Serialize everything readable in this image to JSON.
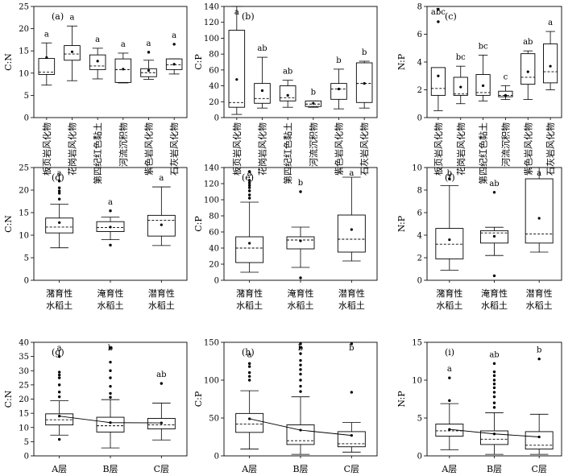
{
  "chart_data": [
    {
      "id": "a",
      "type": "box",
      "panel_label": "(a)",
      "ylabel": "C:N",
      "ylim": [
        0,
        25
      ],
      "yticks": [
        0,
        5,
        10,
        15,
        20,
        25
      ],
      "categories": [
        "板页岩风化物",
        "花岗岩风化物",
        "第四纪红色黏土",
        "河流沉积物",
        "紫色岩风化物",
        "石灰岩风化物"
      ],
      "boxes": [
        {
          "whislo": 7.3,
          "q1": 9.7,
          "med": 10.2,
          "q3": 13.3,
          "whishi": 16.8,
          "mean": 13.5,
          "sig": "a",
          "outliers": []
        },
        {
          "whislo": 8.3,
          "q1": 12.9,
          "med": 14.3,
          "q3": 16.2,
          "whishi": 20.6,
          "mean": 14.8,
          "sig": "a",
          "outliers": []
        },
        {
          "whislo": 8.7,
          "q1": 10.8,
          "med": 11.6,
          "q3": 14.1,
          "whishi": 15.6,
          "mean": 12.7,
          "sig": "a",
          "outliers": []
        },
        {
          "whislo": 7.8,
          "q1": 7.9,
          "med": 10.8,
          "q3": 13.2,
          "whishi": 14.5,
          "mean": 10.9,
          "sig": "a",
          "outliers": []
        },
        {
          "whislo": 8.6,
          "q1": 9.2,
          "med": 10.1,
          "q3": 11.0,
          "whishi": 12.9,
          "mean": 10.6,
          "sig": "a",
          "outliers": [
            14.7
          ]
        },
        {
          "whislo": 9.8,
          "q1": 10.8,
          "med": 11.9,
          "q3": 13.2,
          "whishi": 13.2,
          "mean": 12.0,
          "sig": "a",
          "outliers": [
            16.5
          ]
        }
      ]
    },
    {
      "id": "b",
      "type": "box",
      "panel_label": "(b)",
      "ylabel": "C:P",
      "ylim": [
        0,
        140
      ],
      "yticks": [
        0,
        20,
        40,
        60,
        80,
        100,
        120,
        140
      ],
      "categories": [
        "板页岩风化物",
        "花岗岩风化物",
        "第四纪红色黏土",
        "河流沉积物",
        "紫色岩风化物",
        "石灰岩风化物"
      ],
      "boxes": [
        {
          "whislo": 4,
          "q1": 13,
          "med": 19,
          "q3": 110,
          "whishi": 140,
          "mean": 48,
          "sig": "a",
          "outliers": []
        },
        {
          "whislo": 12,
          "q1": 18,
          "med": 24,
          "q3": 43,
          "whishi": 76,
          "mean": 34,
          "sig": "ab",
          "outliers": []
        },
        {
          "whislo": 13,
          "q1": 21,
          "med": 25,
          "q3": 40,
          "whishi": 47,
          "mean": 28,
          "sig": "ab",
          "outliers": []
        },
        {
          "whislo": 13,
          "q1": 14,
          "med": 17,
          "q3": 21,
          "whishi": 21,
          "mean": 18,
          "sig": "b",
          "outliers": []
        },
        {
          "whislo": 11,
          "q1": 23,
          "med": 36,
          "q3": 43,
          "whishi": 61,
          "mean": 36,
          "sig": "b",
          "outliers": []
        },
        {
          "whislo": 12,
          "q1": 19,
          "med": 43,
          "q3": 69,
          "whishi": 71,
          "mean": 43,
          "sig": "b",
          "outliers": []
        }
      ]
    },
    {
      "id": "c",
      "type": "box",
      "panel_label": "(c)",
      "ylabel": "N:P",
      "ylim": [
        0,
        8
      ],
      "yticks": [
        0,
        2,
        4,
        6,
        8
      ],
      "categories": [
        "板页岩风化物",
        "花岗岩风化物",
        "第四纪红色黏土",
        "河流沉积物",
        "紫色岩风化物",
        "石灰岩风化物"
      ],
      "boxes": [
        {
          "whislo": 0.5,
          "q1": 1.6,
          "med": 2.1,
          "q3": 3.6,
          "whishi": 3.6,
          "mean": 3.0,
          "sig": "abc",
          "outliers": [
            6.9,
            7.8
          ]
        },
        {
          "whislo": 1.0,
          "q1": 1.6,
          "med": 1.7,
          "q3": 2.9,
          "whishi": 3.7,
          "mean": 2.2,
          "sig": "bc",
          "outliers": []
        },
        {
          "whislo": 1.2,
          "q1": 1.6,
          "med": 1.8,
          "q3": 3.1,
          "whishi": 4.5,
          "mean": 2.3,
          "sig": "bc",
          "outliers": []
        },
        {
          "whislo": 1.3,
          "q1": 1.5,
          "med": 1.6,
          "q3": 1.9,
          "whishi": 2.3,
          "mean": 1.6,
          "sig": "c",
          "outliers": []
        },
        {
          "whislo": 1.3,
          "q1": 2.4,
          "med": 2.9,
          "q3": 4.6,
          "whishi": 4.8,
          "mean": 3.3,
          "sig": "ab",
          "outliers": []
        },
        {
          "whislo": 2.0,
          "q1": 2.5,
          "med": 3.3,
          "q3": 5.3,
          "whishi": 6.2,
          "mean": 3.7,
          "sig": "a",
          "outliers": []
        }
      ]
    },
    {
      "id": "d",
      "type": "box",
      "panel_label": "(d)",
      "ylabel": "C:N",
      "ylim": [
        0,
        25
      ],
      "yticks": [
        0,
        5,
        10,
        15,
        20,
        25
      ],
      "categories": [
        "潴育性\n水稻土",
        "淹育性\n水稻土",
        "潜育性\n水稻土"
      ],
      "boxes": [
        {
          "whislo": 7.2,
          "q1": 10.5,
          "med": 11.8,
          "q3": 13.8,
          "whishi": 16.9,
          "mean": 12.8,
          "sig": "a",
          "outliers": [
            18.0,
            19.3,
            19.8,
            20.5,
            22.0
          ]
        },
        {
          "whislo": 9.0,
          "q1": 10.8,
          "med": 11.7,
          "q3": 13.0,
          "whishi": 14.0,
          "mean": 11.8,
          "sig": "a",
          "outliers": [
            7.8,
            15.4
          ]
        },
        {
          "whislo": 7.7,
          "q1": 9.8,
          "med": 13.3,
          "q3": 14.4,
          "whishi": 20.7,
          "mean": 12.3,
          "sig": "a",
          "outliers": []
        }
      ]
    },
    {
      "id": "e",
      "type": "box",
      "panel_label": "(e)",
      "ylabel": "C:P",
      "ylim": [
        0,
        140
      ],
      "yticks": [
        0,
        20,
        40,
        60,
        80,
        100,
        120,
        140
      ],
      "categories": [
        "潴育性\n水稻土",
        "淹育性\n水稻土",
        "潜育性\n水稻土"
      ],
      "boxes": [
        {
          "whislo": 10,
          "q1": 22,
          "med": 40,
          "q3": 54,
          "whishi": 97,
          "mean": 46,
          "sig": "a",
          "outliers": [
            102,
            106,
            111,
            115,
            118,
            121,
            124,
            135
          ]
        },
        {
          "whislo": 16,
          "q1": 39,
          "med": 50,
          "q3": 54,
          "whishi": 66,
          "mean": 49,
          "sig": "b",
          "outliers": [
            3,
            110
          ]
        },
        {
          "whislo": 24,
          "q1": 35,
          "med": 51,
          "q3": 81,
          "whishi": 128,
          "mean": 63,
          "sig": "a",
          "outliers": []
        }
      ]
    },
    {
      "id": "f",
      "type": "box",
      "panel_label": "(f)",
      "ylabel": "N:P",
      "ylim": [
        0,
        10
      ],
      "yticks": [
        0,
        2,
        4,
        6,
        8,
        10
      ],
      "categories": [
        "潴育性\n水稻土",
        "淹育性\n水稻土",
        "潜育性\n水稻土"
      ],
      "boxes": [
        {
          "whislo": 0.9,
          "q1": 1.9,
          "med": 3.2,
          "q3": 4.6,
          "whishi": 8.4,
          "mean": 3.6,
          "sig": "b",
          "outliers": [
            9.0
          ]
        },
        {
          "whislo": 2.2,
          "q1": 3.3,
          "med": 4.2,
          "q3": 4.4,
          "whishi": 4.7,
          "mean": 3.9,
          "sig": "ab",
          "outliers": [
            0.4,
            7.8
          ]
        },
        {
          "whislo": 2.5,
          "q1": 3.3,
          "med": 4.1,
          "q3": 9.0,
          "whishi": 10.0,
          "mean": 5.5,
          "sig": "a",
          "outliers": []
        }
      ]
    },
    {
      "id": "g",
      "type": "box",
      "panel_label": "(g)",
      "ylabel": "C:N",
      "ylim": [
        0,
        40
      ],
      "yticks": [
        0,
        5,
        10,
        15,
        20,
        25,
        30,
        35,
        40
      ],
      "categories": [
        "A层",
        "B层",
        "C层"
      ],
      "mean_line": true,
      "boxes": [
        {
          "whislo": 7.3,
          "q1": 10.9,
          "med": 12.7,
          "q3": 14.8,
          "whishi": 19.4,
          "mean": 14.0,
          "sig": "a",
          "outliers": [
            5.8,
            20.8,
            22.5,
            25.0,
            27.5,
            28.5,
            29.5,
            35.0
          ]
        },
        {
          "whislo": 2.8,
          "q1": 8.4,
          "med": 10.6,
          "q3": 13.6,
          "whishi": 19.8,
          "mean": 11.7,
          "sig": "b",
          "outliers": [
            20.6,
            22.0,
            24.5,
            27.5,
            30.0,
            33.0,
            38.0
          ]
        },
        {
          "whislo": 5.6,
          "q1": 9.5,
          "med": 10.9,
          "q3": 13.2,
          "whishi": 18.6,
          "mean": 11.6,
          "sig": "ab",
          "outliers": [
            25.5
          ]
        }
      ]
    },
    {
      "id": "h",
      "type": "box",
      "panel_label": "(h)",
      "ylabel": "C:P",
      "ylim": [
        0,
        150
      ],
      "yticks": [
        0,
        50,
        100,
        150
      ],
      "categories": [
        "A层",
        "B层",
        "C层"
      ],
      "mean_line": true,
      "boxes": [
        {
          "whislo": 9,
          "q1": 31,
          "med": 42,
          "q3": 56,
          "whishi": 86,
          "mean": 49,
          "sig": "a",
          "outliers": [
            100,
            105,
            110,
            118,
            122
          ]
        },
        {
          "whislo": 2,
          "q1": 15,
          "med": 20,
          "q3": 41,
          "whishi": 78,
          "mean": 34,
          "sig": "b",
          "outliers": [
            85,
            92,
            100,
            108,
            114,
            120,
            126,
            135,
            143,
            148
          ]
        },
        {
          "whislo": 5,
          "q1": 12,
          "med": 16,
          "q3": 32,
          "whishi": 44,
          "mean": 27,
          "sig": "b",
          "outliers": [
            84,
            148
          ]
        }
      ]
    },
    {
      "id": "i",
      "type": "box",
      "panel_label": "(i)",
      "ylabel": "N:P",
      "ylim": [
        0,
        15
      ],
      "yticks": [
        0,
        5,
        10,
        15
      ],
      "categories": [
        "A层",
        "B层",
        "C层"
      ],
      "mean_line": true,
      "boxes": [
        {
          "whislo": 0.8,
          "q1": 2.6,
          "med": 3.3,
          "q3": 4.2,
          "whishi": 6.9,
          "mean": 3.5,
          "sig": "a",
          "outliers": [
            7.3,
            10.3
          ]
        },
        {
          "whislo": 0.2,
          "q1": 1.5,
          "med": 2.2,
          "q3": 3.3,
          "whishi": 5.7,
          "mean": 2.9,
          "sig": "ab",
          "outliers": [
            6.4,
            7.0,
            7.8,
            8.4,
            9.0,
            9.5,
            10.0,
            10.6,
            11.1,
            12.2
          ]
        },
        {
          "whislo": 0.2,
          "q1": 0.9,
          "med": 1.4,
          "q3": 3.2,
          "whishi": 5.5,
          "mean": 2.5,
          "sig": "b",
          "outliers": [
            12.8
          ]
        }
      ]
    }
  ]
}
